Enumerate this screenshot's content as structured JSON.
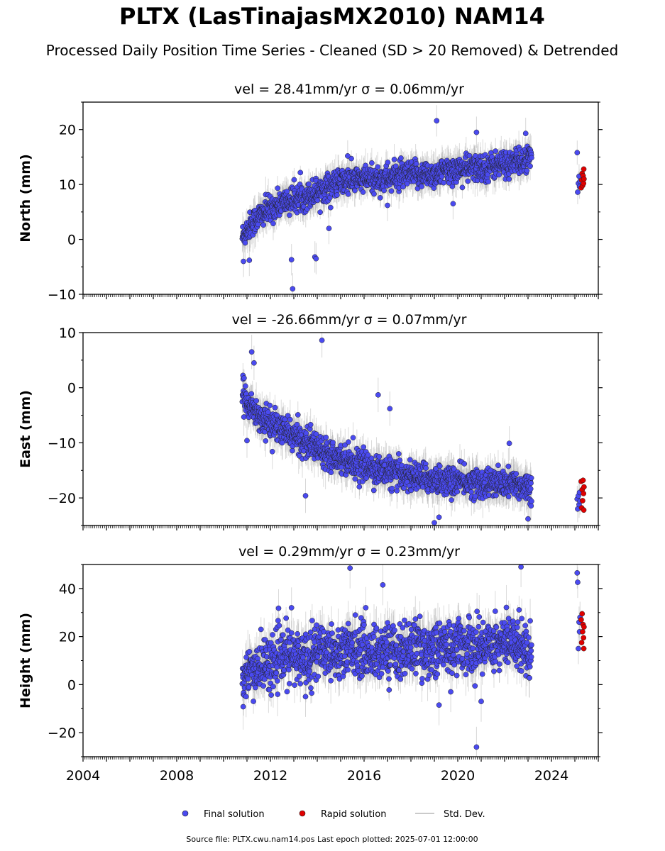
{
  "figure": {
    "title": "PLTX (LasTinajasMX2010) NAM14",
    "subtitle": "Processed Daily Position Time Series - Cleaned (SD > 20 Removed) & Detrended",
    "footer": "Source file: PLTX.cwu.nam14.pos  Last epoch plotted: 2025-07-01 12:00:00",
    "legend": [
      {
        "label": "Final solution",
        "marker": "dot",
        "color": "#4a4af0"
      },
      {
        "label": "Rapid solution",
        "marker": "dot",
        "color": "#e00000"
      },
      {
        "label": "Std. Dev.",
        "marker": "line",
        "color": "#b8b8b8"
      }
    ],
    "colors": {
      "final": "#4a4af0",
      "rapid": "#e00000",
      "stddev": "#b0b0b0",
      "edge": "#222222"
    }
  },
  "chart_data": [
    {
      "type": "scatter",
      "panel": "north",
      "title": "vel = 28.41mm/yr   σ = 0.06mm/yr",
      "ylabel": "North (mm)",
      "xlim": [
        2004.0,
        2026.0
      ],
      "ylim": [
        -10,
        25
      ],
      "yticks": [
        -10,
        0,
        10,
        20
      ],
      "ytick_labels": [
        "−10",
        "0",
        "10",
        "20"
      ],
      "grid": false,
      "series": [
        {
          "name": "Final solution",
          "x": [
            2010.8,
            2011.2,
            2011.6,
            2012.0,
            2012.4,
            2012.8,
            2013.2,
            2013.6,
            2014.0,
            2014.4,
            2014.8,
            2015.2,
            2015.6,
            2016.0,
            2016.4,
            2016.8,
            2017.2,
            2017.6,
            2018.0,
            2018.4,
            2018.8,
            2019.2,
            2019.6,
            2020.0,
            2020.4,
            2020.8,
            2021.2,
            2021.6,
            2022.0,
            2022.4,
            2022.8,
            2023.1
          ],
          "y": [
            0.5,
            3.0,
            4.5,
            5.5,
            6.5,
            7.0,
            7.5,
            8.0,
            8.8,
            9.5,
            10.2,
            10.6,
            10.9,
            10.9,
            11.0,
            11.0,
            11.3,
            11.6,
            11.7,
            11.8,
            11.8,
            12.0,
            12.5,
            12.8,
            12.9,
            13.0,
            13.1,
            13.5,
            13.8,
            14.0,
            14.3,
            14.6
          ],
          "outliers_x": [
            2010.85,
            2011.1,
            2012.9,
            2012.95,
            2013.9,
            2013.95,
            2014.5,
            2019.1,
            2020.8,
            2022.9,
            2019.8,
            2017.0,
            2015.3
          ],
          "outliers_y": [
            -4.0,
            -3.8,
            -3.7,
            -9.0,
            -3.2,
            -3.5,
            2.0,
            21.6,
            19.5,
            19.3,
            6.5,
            6.2,
            15.2
          ]
        },
        {
          "name": "Rapid solution",
          "x": [
            2025.27,
            2025.29,
            2025.31,
            2025.33,
            2025.35,
            2025.37,
            2025.38,
            2025.39
          ],
          "y": [
            9.4,
            10.8,
            12.0,
            9.8,
            11.6,
            10.2,
            12.8,
            11.0
          ]
        }
      ],
      "extra_final_points": {
        "x": [
          2025.1,
          2025.12,
          2025.15,
          2025.18,
          2025.2,
          2025.22
        ],
        "y": [
          15.8,
          8.6,
          10.2,
          11.5,
          9.6,
          10.6
        ]
      }
    },
    {
      "type": "scatter",
      "panel": "east",
      "title": "vel = -26.66mm/yr   σ = 0.07mm/yr",
      "ylabel": "East (mm)",
      "xlim": [
        2004.0,
        2026.0
      ],
      "ylim": [
        -25,
        10
      ],
      "yticks": [
        -20,
        -10,
        0,
        10
      ],
      "ytick_labels": [
        "−20",
        "−10",
        "0",
        "10"
      ],
      "grid": false,
      "series": [
        {
          "name": "Final solution",
          "x": [
            2010.8,
            2011.2,
            2011.6,
            2012.0,
            2012.4,
            2012.8,
            2013.2,
            2013.6,
            2014.0,
            2014.4,
            2014.8,
            2015.2,
            2015.6,
            2016.0,
            2016.4,
            2016.8,
            2017.2,
            2017.6,
            2018.0,
            2018.4,
            2018.8,
            2019.2,
            2019.6,
            2020.0,
            2020.4,
            2020.8,
            2021.2,
            2021.6,
            2022.0,
            2022.4,
            2022.8,
            2023.1
          ],
          "y": [
            -1.0,
            -3.5,
            -5.5,
            -6.5,
            -7.5,
            -8.3,
            -9.2,
            -10.0,
            -10.8,
            -11.6,
            -12.3,
            -13.0,
            -13.6,
            -14.2,
            -14.7,
            -15.1,
            -15.5,
            -15.8,
            -16.1,
            -16.3,
            -16.5,
            -16.7,
            -16.9,
            -17.0,
            -17.1,
            -17.2,
            -17.3,
            -17.4,
            -17.5,
            -17.6,
            -17.8,
            -18.0
          ],
          "outliers_x": [
            2011.2,
            2011.3,
            2014.2,
            2011.0,
            2012.5,
            2013.5,
            2016.6,
            2017.1,
            2019.0,
            2019.2,
            2021.4,
            2022.2,
            2023.0
          ],
          "outliers_y": [
            6.5,
            4.5,
            8.6,
            -9.6,
            -10.0,
            -19.6,
            -1.3,
            -3.8,
            -24.5,
            -23.5,
            -15.0,
            -10.1,
            -23.8
          ]
        },
        {
          "name": "Rapid solution",
          "x": [
            2025.27,
            2025.29,
            2025.31,
            2025.33,
            2025.35,
            2025.37,
            2025.38,
            2025.39
          ],
          "y": [
            -17.0,
            -21.8,
            -18.5,
            -20.5,
            -16.8,
            -19.2,
            -22.2,
            -18.0
          ]
        }
      ],
      "extra_final_points": {
        "x": [
          2025.1,
          2025.12,
          2025.15,
          2025.18,
          2025.2,
          2025.22
        ],
        "y": [
          -20.2,
          -22.0,
          -19.6,
          -21.2,
          -19.0,
          -20.6
        ]
      }
    },
    {
      "type": "scatter",
      "panel": "height",
      "title": "vel = 0.29mm/yr   σ = 0.23mm/yr",
      "ylabel": "Height (mm)",
      "xlim": [
        2004.0,
        2026.0
      ],
      "ylim": [
        -30,
        50
      ],
      "yticks": [
        -20,
        0,
        20,
        40
      ],
      "ytick_labels": [
        "−20",
        "0",
        "20",
        "40"
      ],
      "xticks": [
        2004,
        2008,
        2012,
        2016,
        2020,
        2024
      ],
      "grid": false,
      "series": [
        {
          "name": "Final solution",
          "x": [
            2010.8,
            2011.2,
            2011.6,
            2012.0,
            2012.4,
            2012.8,
            2013.2,
            2013.6,
            2014.0,
            2014.4,
            2014.8,
            2015.2,
            2015.6,
            2016.0,
            2016.4,
            2016.8,
            2017.2,
            2017.6,
            2018.0,
            2018.4,
            2018.8,
            2019.2,
            2019.6,
            2020.0,
            2020.4,
            2020.8,
            2021.2,
            2021.6,
            2022.0,
            2022.4,
            2022.8,
            2023.1
          ],
          "y": [
            0.0,
            6.0,
            8.0,
            9.0,
            11.0,
            12.0,
            11.0,
            12.0,
            14.0,
            15.0,
            13.0,
            14.0,
            16.0,
            14.0,
            13.0,
            14.0,
            15.0,
            13.0,
            16.0,
            15.0,
            14.0,
            16.0,
            15.0,
            17.0,
            16.0,
            15.0,
            17.0,
            18.0,
            17.0,
            18.0,
            16.0,
            14.0
          ],
          "outliers_x": [
            2015.4,
            2016.8,
            2020.8,
            2022.7,
            2019.2,
            2012.9,
            2021.0,
            2013.5,
            2019.7
          ],
          "outliers_y": [
            48.5,
            41.5,
            -26.0,
            49.0,
            -8.5,
            32.0,
            -7.0,
            -5.0,
            -3.0
          ]
        },
        {
          "name": "Rapid solution",
          "x": [
            2025.27,
            2025.29,
            2025.31,
            2025.33,
            2025.35,
            2025.37,
            2025.38,
            2025.39
          ],
          "y": [
            27.0,
            17.5,
            29.5,
            22.0,
            25.0,
            19.5,
            15.0,
            24.0
          ]
        }
      ],
      "extra_final_points": {
        "x": [
          2025.1,
          2025.12,
          2025.15,
          2025.18,
          2025.2,
          2025.22
        ],
        "y": [
          46.5,
          42.6,
          15.0,
          26.0,
          22.0,
          28.0
        ]
      }
    }
  ]
}
